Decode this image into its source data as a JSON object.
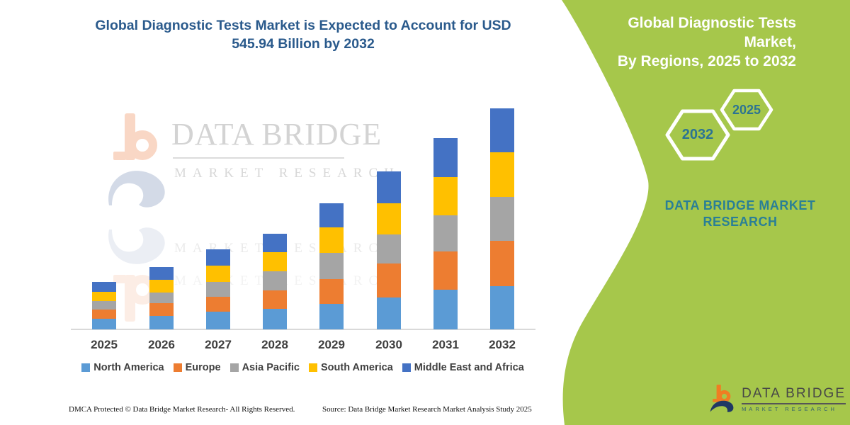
{
  "header": {
    "title_line1": "Global Diagnostic Tests Market is Expected to Account for USD",
    "title_line2": "545.94 Billion by 2032"
  },
  "chart_data": {
    "type": "bar",
    "stacked": true,
    "title": "Global Diagnostic Tests Market is Expected to Account for USD 545.94 Billion by 2032",
    "unit": "USD Billion",
    "categories": [
      "2025",
      "2026",
      "2027",
      "2028",
      "2029",
      "2030",
      "2031",
      "2032"
    ],
    "series": [
      {
        "name": "North America",
        "color": "#5B9BD5",
        "values": [
          26,
          33,
          44,
          51,
          63,
          79,
          98,
          106
        ]
      },
      {
        "name": "Europe",
        "color": "#ED7D31",
        "values": [
          23,
          31,
          36,
          46,
          61,
          84,
          95,
          113
        ]
      },
      {
        "name": "Asia Pacific",
        "color": "#A5A5A5",
        "values": [
          21,
          27,
          38,
          47,
          65,
          72,
          88,
          108
        ]
      },
      {
        "name": "South America",
        "color": "#FFC000",
        "values": [
          23,
          31,
          40,
          46,
          63,
          77,
          95,
          109.94
        ]
      },
      {
        "name": "Middle East and Africa",
        "color": "#4472C4",
        "values": [
          25,
          32,
          39,
          46,
          60,
          79,
          96,
          109
        ]
      }
    ],
    "totals": [
      118,
      154,
      197,
      236,
      312,
      391,
      472,
      545.94
    ],
    "values_estimated_from_pixels": true,
    "xlabel": "",
    "ylabel": "",
    "ylim": [
      0,
      560
    ],
    "gridlines": false,
    "y_axis_visible": false,
    "legend_position": "bottom"
  },
  "watermark": {
    "line1": "DATA BRIDGE",
    "line2": "MARKET RESEARCH"
  },
  "side_panel": {
    "background_color": "#a6c74b",
    "title_line1": "Global Diagnostic Tests Market,",
    "title_line2": "By Regions, 2025 to 2032",
    "hexagons": [
      {
        "label": "2032"
      },
      {
        "label": "2025"
      }
    ],
    "brand_line1": "DATA BRIDGE MARKET",
    "brand_line2": "RESEARCH",
    "accent_text_color": "#2d7492"
  },
  "logo": {
    "title": "DATA BRIDGE",
    "subtitle": "MARKET RESEARCH"
  },
  "footer": {
    "left": "DMCA Protected © Data Bridge Market Research-  All Rights Reserved.",
    "source": "Source: Data Bridge Market Research  Market Analysis Study 2025"
  }
}
